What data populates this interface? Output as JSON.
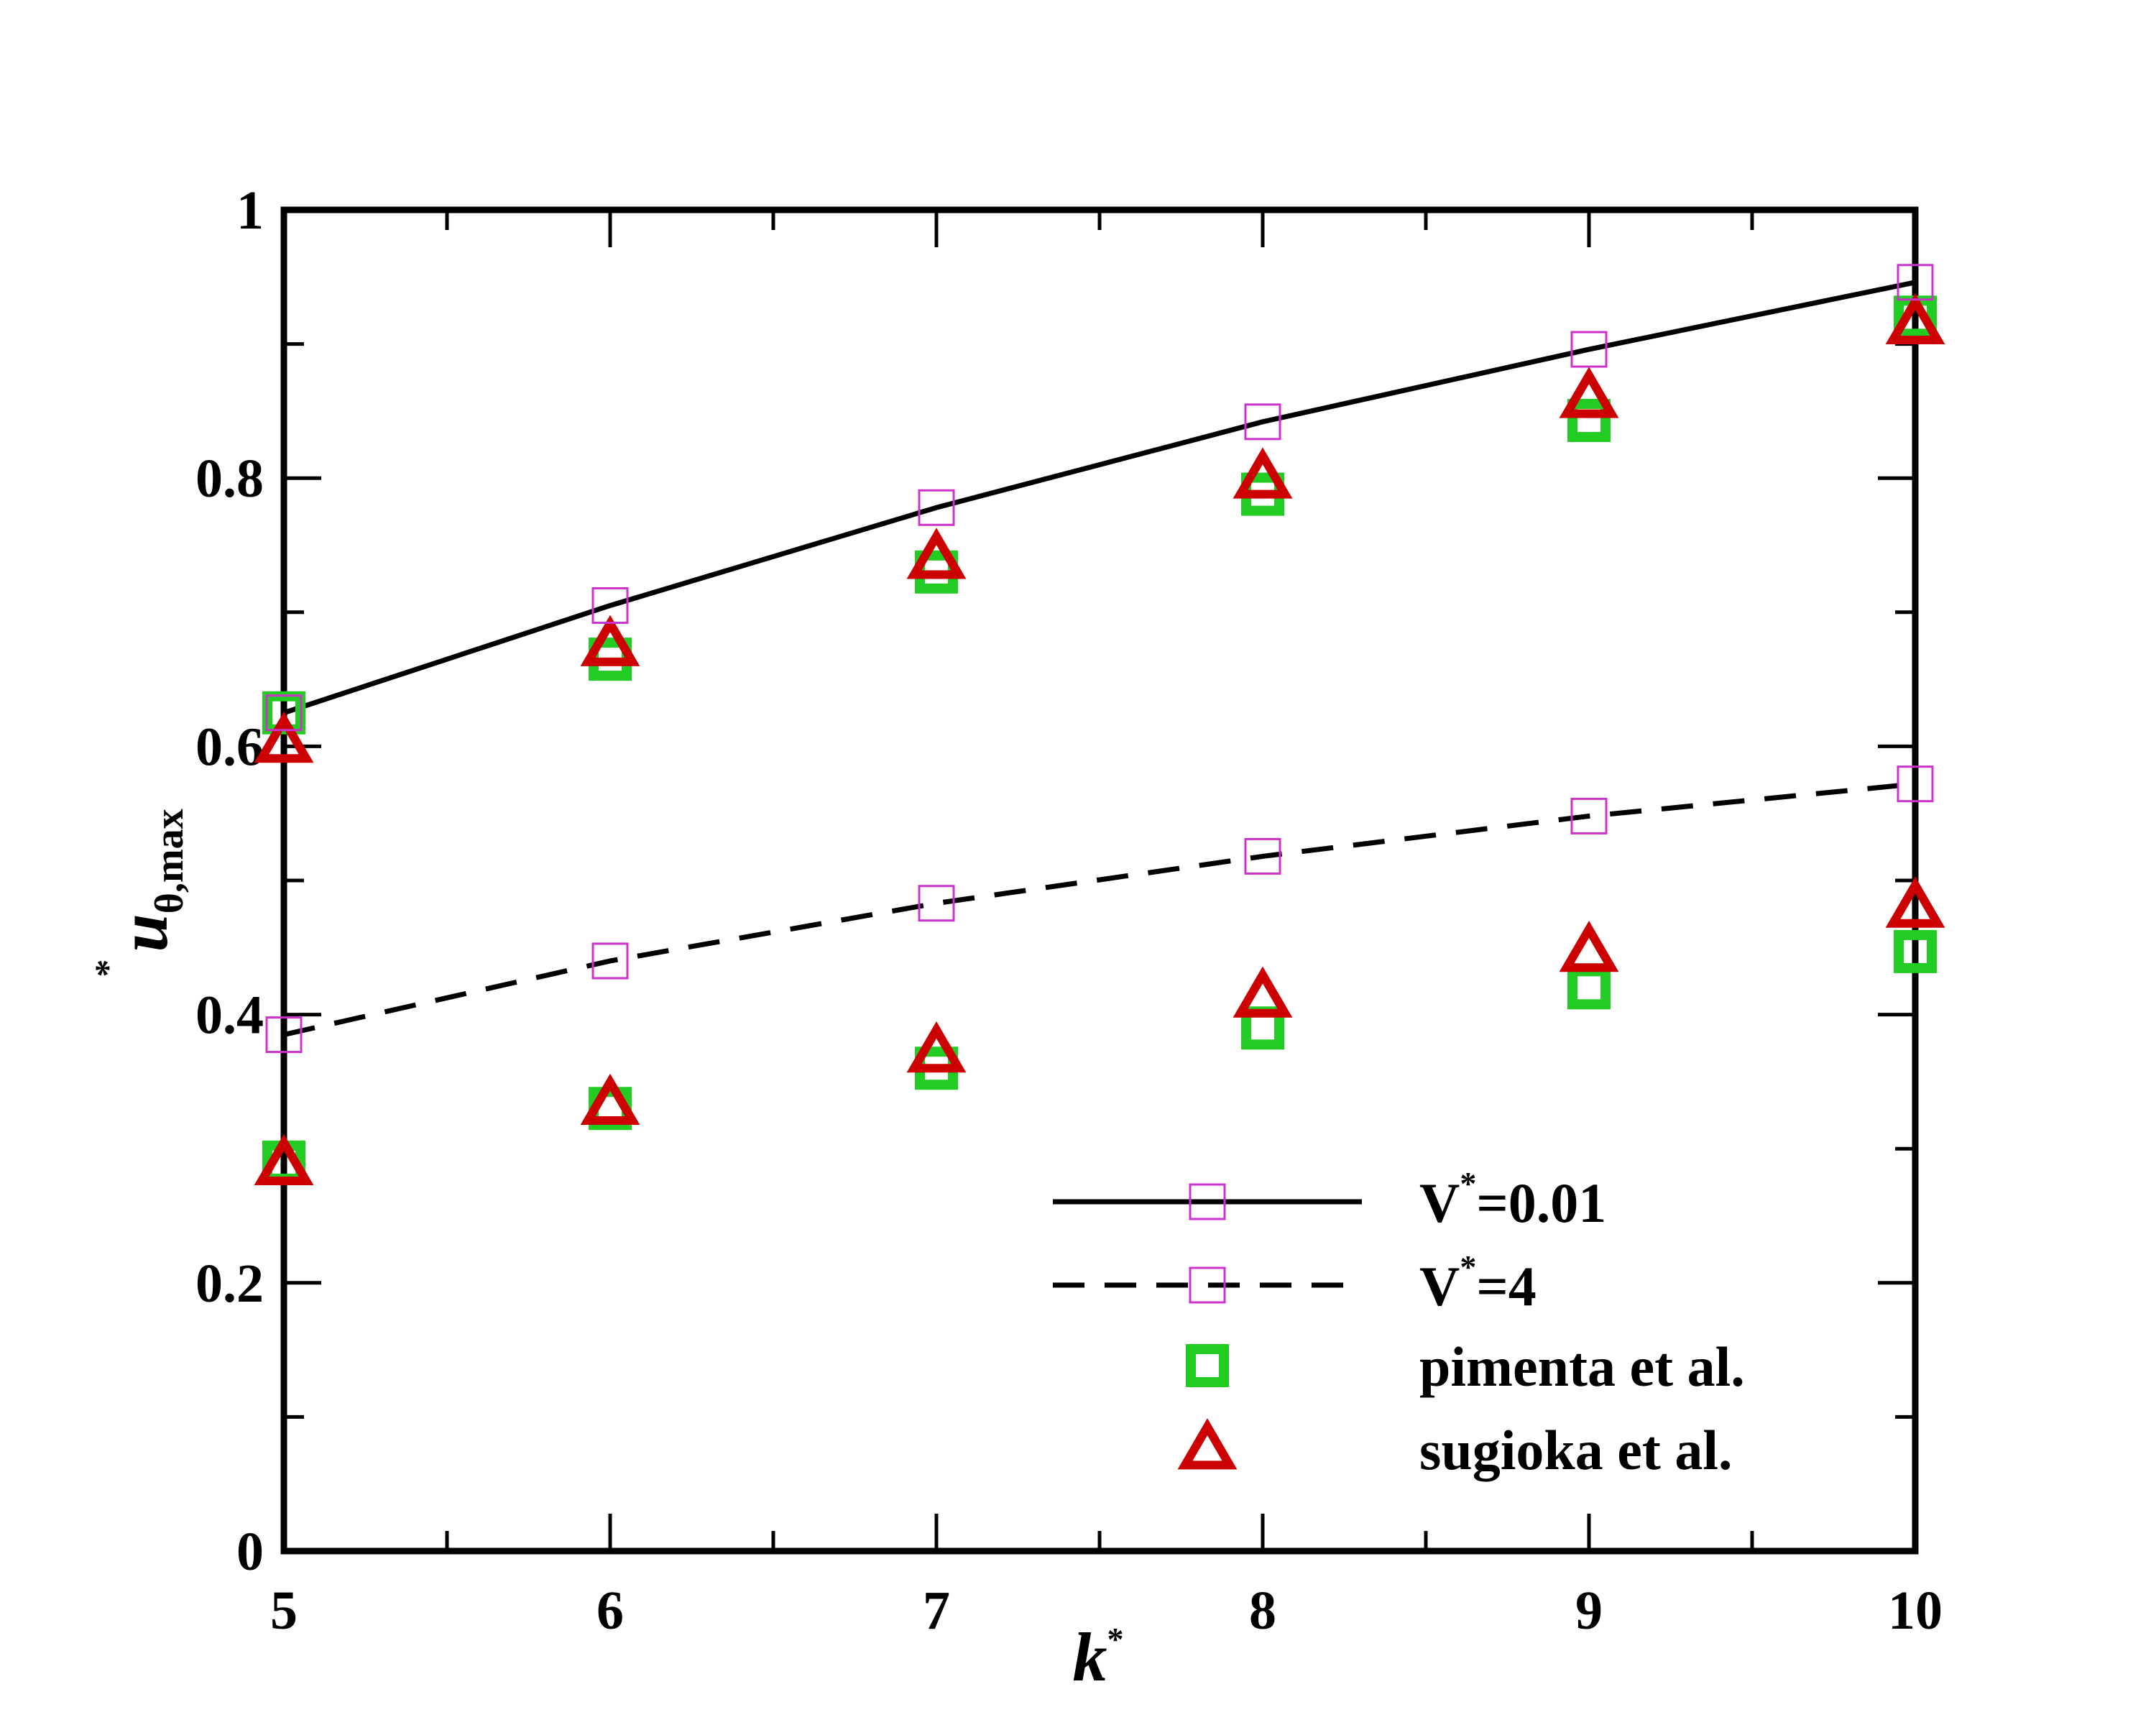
{
  "chart_data": {
    "type": "scatter",
    "xlabel": {
      "base": "k",
      "sup": "*"
    },
    "ylabel": {
      "base": "u",
      "sup": "*",
      "sub": "θ,max"
    },
    "xlim": [
      5,
      10
    ],
    "ylim": [
      0,
      1
    ],
    "xticks": [
      "5",
      "6",
      "7",
      "8",
      "9",
      "10"
    ],
    "yticks": [
      "0",
      "0.2",
      "0.4",
      "0.6",
      "0.8",
      "1"
    ],
    "x": [
      5,
      6,
      7,
      8,
      9,
      10
    ],
    "series": [
      {
        "name": "V*=0.01",
        "name_base": "V",
        "name_sup": "*",
        "name_rest": "=0.01",
        "style": "line-solid-with-open-square",
        "color": "#000000",
        "marker_color": "#cc33cc",
        "values": [
          0.625,
          0.705,
          0.778,
          0.842,
          0.896,
          0.946
        ]
      },
      {
        "name": "V*=4",
        "name_base": "V",
        "name_sup": "*",
        "name_rest": "=4",
        "style": "line-dashed-with-open-square",
        "color": "#000000",
        "marker_color": "#cc33cc",
        "values": [
          0.385,
          0.44,
          0.483,
          0.518,
          0.548,
          0.572
        ]
      },
      {
        "name": "pimenta et al.",
        "style": "open-square-thick",
        "color": "#22cc22",
        "values_upper": [
          0.625,
          0.665,
          0.73,
          0.788,
          0.843,
          0.92
        ],
        "values_lower": [
          0.29,
          0.33,
          0.36,
          0.39,
          0.42,
          0.447
        ]
      },
      {
        "name": "sugioka et al.",
        "style": "open-triangle-thick",
        "color": "#cc0000",
        "values_upper": [
          0.603,
          0.675,
          0.74,
          0.8,
          0.86,
          0.915
        ],
        "values_lower": [
          0.288,
          0.333,
          0.372,
          0.413,
          0.447,
          0.48
        ]
      }
    ],
    "legend_position": "bottom-right",
    "grid": false
  }
}
